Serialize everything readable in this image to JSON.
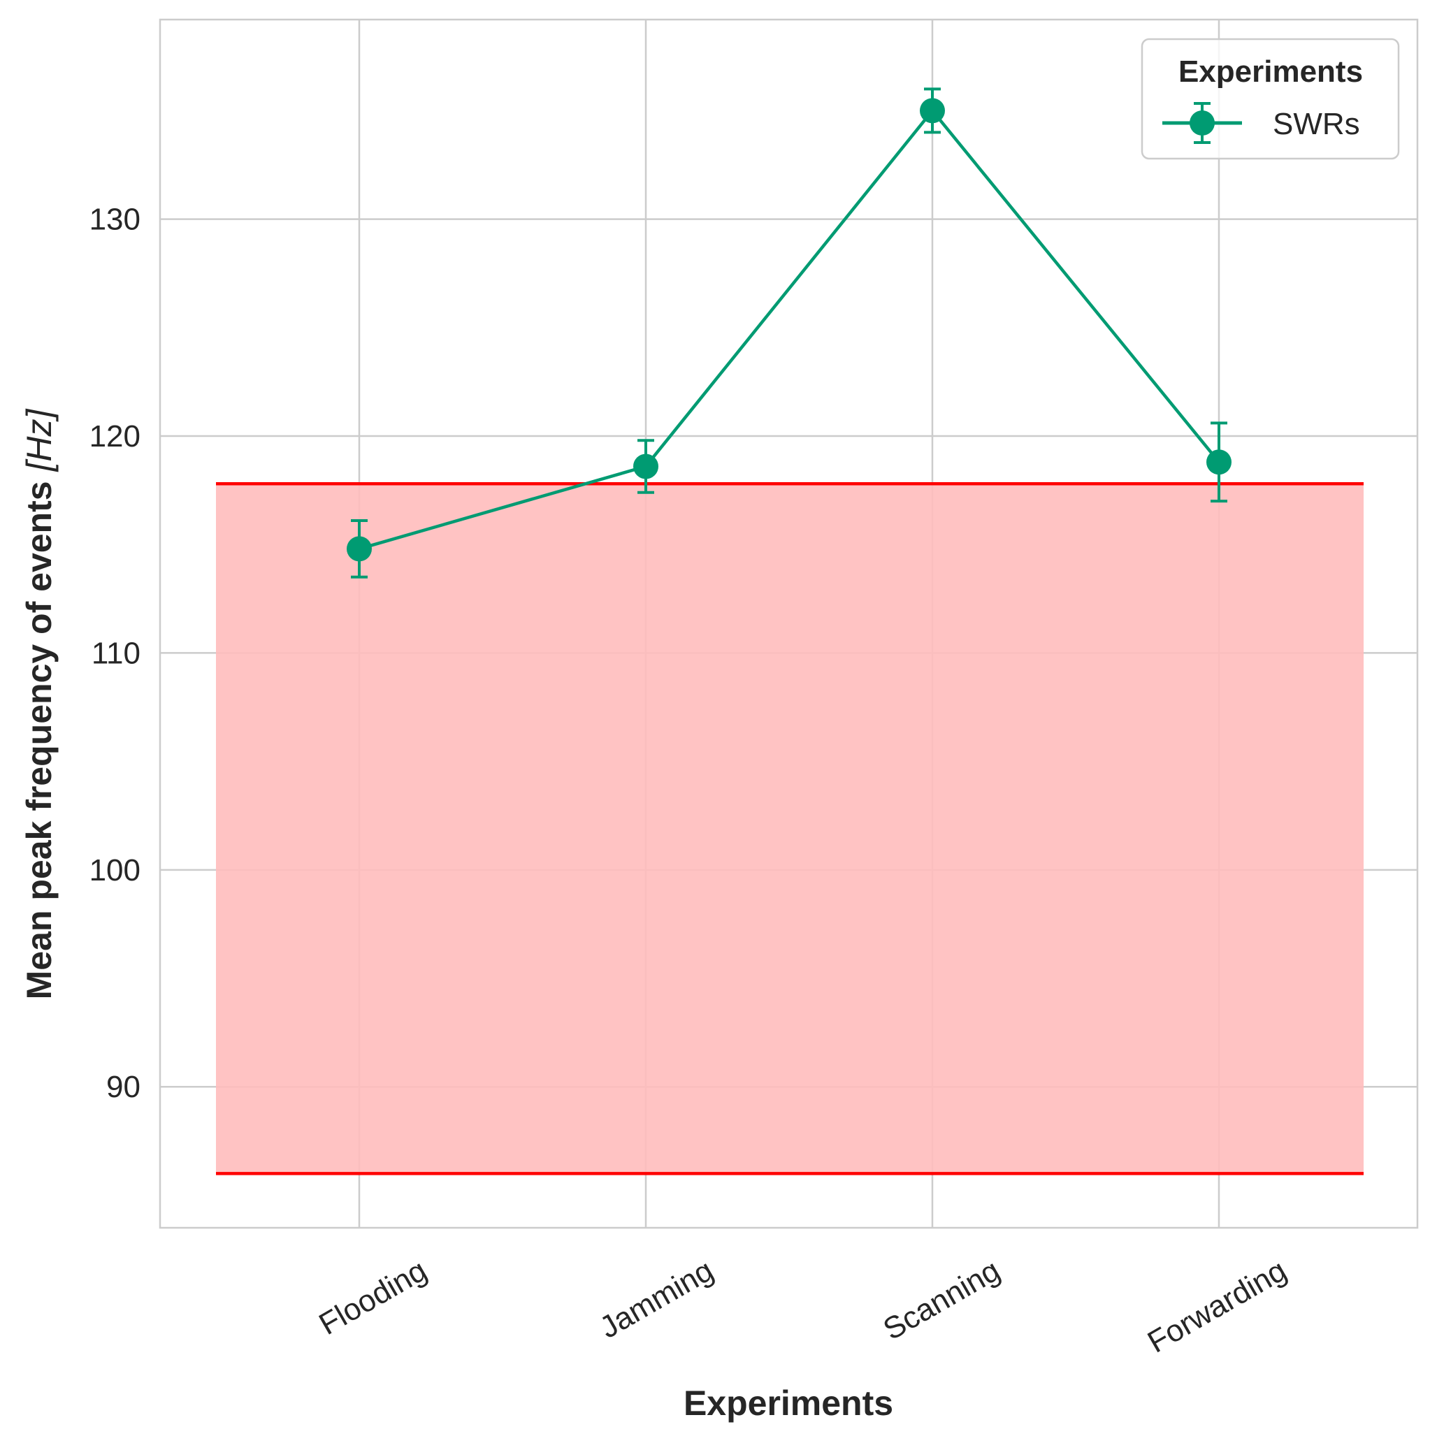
{
  "chart_data": {
    "type": "line",
    "categories": [
      "Flooding",
      "Jamming",
      "Scanning",
      "Forwarding"
    ],
    "series": [
      {
        "name": "SWRs",
        "values": [
          114.8,
          118.6,
          135.0,
          118.8
        ],
        "error": [
          1.3,
          1.2,
          1.0,
          1.8
        ],
        "color": "#009b72"
      }
    ],
    "band": {
      "y_low": 86.0,
      "y_high": 117.8,
      "line_color": "#ff0000",
      "fill_color": "#ffbcbc"
    },
    "xlabel": "Experiments",
    "ylabel_text": "Mean peak frequency of events ",
    "ylabel_unit": "[Hz]",
    "yticks": [
      90,
      100,
      110,
      120,
      130
    ],
    "ylim": [
      83.5,
      139.2
    ],
    "grid": true,
    "legend": {
      "title": "Experiments",
      "placement": "top-right"
    }
  }
}
